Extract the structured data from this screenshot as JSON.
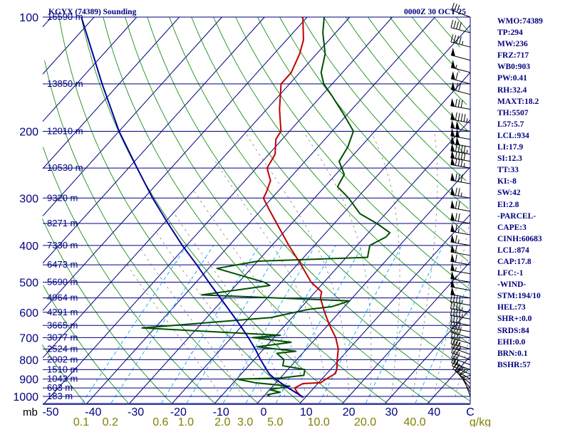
{
  "header": {
    "station": "KGYX (74389) Sounding",
    "time": "0000Z 30 OCT 25"
  },
  "indices": [
    "WMO:74389",
    "TP:294",
    "MW:236",
    "FRZ:717",
    "WB0:903",
    "PW:0.41",
    "RH:32.4",
    "MAXT:18.2",
    "TH:5507",
    "L57:5.7",
    "LCL:934",
    "LI:17.9",
    "SI:12.3",
    "TT:33",
    "KI:-8",
    "SW:42",
    "EI:2.8",
    "-PARCEL-",
    "CAPE:3",
    "CINH:60683",
    "LCL:874",
    "CAP:17.8",
    "LFC:-1",
    "-WIND-",
    "STM:194/10",
    "HEL:73",
    "SHR+:0.0",
    "SRDS:84",
    "EHI:0.0",
    "BRN:0.1",
    "BSHR:57"
  ],
  "colors": {
    "isobar": "#000080",
    "isotherm": "#000080",
    "dry_adiabat": "#008000",
    "moist_adiabat": "#808080",
    "mixing_ratio": "#00aaff",
    "temperature": "#c00000",
    "dewpoint": "#005000",
    "parcel": "#0000a0",
    "mixing_ratio_label": "#808000"
  },
  "chart_data": {
    "type": "line",
    "title": "KGYX (74389) Sounding",
    "subtitle": "0000Z 30 OCT 25",
    "xlabel": "",
    "ylabel": "mb",
    "y_scale": "log",
    "ylim": [
      1050,
      100
    ],
    "xlim": [
      -50,
      50
    ],
    "pressure_ticks": [
      "100",
      "200",
      "300",
      "400",
      "500",
      "600",
      "700",
      "800",
      "900",
      "1000"
    ],
    "pressure_tick_values": [
      100,
      200,
      300,
      400,
      500,
      600,
      700,
      800,
      900,
      1000
    ],
    "temperature_ticks": [
      "-50",
      "-40",
      "-30",
      "-20",
      "-10",
      "0",
      "10",
      "20",
      "30",
      "40",
      "C"
    ],
    "temperature_tick_values": [
      -50,
      -40,
      -30,
      -20,
      -10,
      0,
      10,
      20,
      30,
      40
    ],
    "mixing_ratio_labels": [
      "0.1",
      "0.2",
      "0.6",
      "1.0",
      "2.0",
      "3.0",
      "5.0",
      "10.0",
      "20.0",
      "40.0",
      "g/kg"
    ],
    "mixing_ratio_values": [
      0.1,
      0.2,
      0.6,
      1.0,
      2.0,
      3.0,
      5.0,
      10.0,
      20.0,
      40.0
    ],
    "height_labels": [
      {
        "p": 100,
        "label": "16590 m"
      },
      {
        "p": 150,
        "label": "13850 m"
      },
      {
        "p": 200,
        "label": "12010 m"
      },
      {
        "p": 250,
        "label": "10530 m"
      },
      {
        "p": 300,
        "label": "9320 m"
      },
      {
        "p": 350,
        "label": "8271 m"
      },
      {
        "p": 400,
        "label": "7330 m"
      },
      {
        "p": 450,
        "label": "6473 m"
      },
      {
        "p": 500,
        "label": "5690 m"
      },
      {
        "p": 550,
        "label": "4964 m"
      },
      {
        "p": 600,
        "label": "4291 m"
      },
      {
        "p": 650,
        "label": "3665 m"
      },
      {
        "p": 700,
        "label": "3077 m"
      },
      {
        "p": 750,
        "label": "2524 m"
      },
      {
        "p": 800,
        "label": "2002 m"
      },
      {
        "p": 850,
        "label": "1510 m"
      },
      {
        "p": 900,
        "label": "1043 m"
      },
      {
        "p": 950,
        "label": "603 m"
      },
      {
        "p": 1000,
        "label": "183 m"
      }
    ],
    "series": [
      {
        "key": "temperature",
        "points": [
          {
            "p": 1006,
            "t": 9.5
          },
          {
            "p": 1000,
            "t": 8.8
          },
          {
            "p": 975,
            "t": 7.0
          },
          {
            "p": 950,
            "t": 5.5
          },
          {
            "p": 925,
            "t": 6.5
          },
          {
            "p": 920,
            "t": 10.5
          },
          {
            "p": 900,
            "t": 11.0
          },
          {
            "p": 870,
            "t": 12.0
          },
          {
            "p": 850,
            "t": 11.5
          },
          {
            "p": 800,
            "t": 9.5
          },
          {
            "p": 750,
            "t": 7.5
          },
          {
            "p": 700,
            "t": 4.5
          },
          {
            "p": 650,
            "t": 0.5
          },
          {
            "p": 600,
            "t": -3.5
          },
          {
            "p": 550,
            "t": -7.5
          },
          {
            "p": 530,
            "t": -8.5
          },
          {
            "p": 500,
            "t": -13.0
          },
          {
            "p": 450,
            "t": -19.0
          },
          {
            "p": 400,
            "t": -26.0
          },
          {
            "p": 350,
            "t": -33.5
          },
          {
            "p": 320,
            "t": -38.5
          },
          {
            "p": 300,
            "t": -42.0
          },
          {
            "p": 290,
            "t": -42.5
          },
          {
            "p": 270,
            "t": -44.0
          },
          {
            "p": 250,
            "t": -47.5
          },
          {
            "p": 230,
            "t": -48.5
          },
          {
            "p": 210,
            "t": -51.5
          },
          {
            "p": 200,
            "t": -52.0
          },
          {
            "p": 175,
            "t": -57.0
          },
          {
            "p": 150,
            "t": -62.0
          },
          {
            "p": 140,
            "t": -62.0
          },
          {
            "p": 125,
            "t": -64.0
          },
          {
            "p": 115,
            "t": -66.0
          },
          {
            "p": 100,
            "t": -71.0
          }
        ]
      },
      {
        "key": "dewpoint",
        "points": [
          {
            "p": 1000,
            "t": 1.5
          },
          {
            "p": 990,
            "t": 0.5
          },
          {
            "p": 975,
            "t": 3.0
          },
          {
            "p": 960,
            "t": 0.0
          },
          {
            "p": 940,
            "t": 4.0
          },
          {
            "p": 920,
            "t": -5.0
          },
          {
            "p": 900,
            "t": -10.0
          },
          {
            "p": 895,
            "t": 0.0
          },
          {
            "p": 880,
            "t": 5.0
          },
          {
            "p": 850,
            "t": 4.0
          },
          {
            "p": 830,
            "t": -2.0
          },
          {
            "p": 800,
            "t": -3.0
          },
          {
            "p": 770,
            "t": -6.0
          },
          {
            "p": 760,
            "t": -2.0
          },
          {
            "p": 740,
            "t": -12.0
          },
          {
            "p": 720,
            "t": -5.0
          },
          {
            "p": 700,
            "t": -15.0
          },
          {
            "p": 690,
            "t": -9.0
          },
          {
            "p": 660,
            "t": -43.0
          },
          {
            "p": 620,
            "t": -15.0
          },
          {
            "p": 590,
            "t": -8.0
          },
          {
            "p": 580,
            "t": -3.0
          },
          {
            "p": 560,
            "t": 0.0
          },
          {
            "p": 540,
            "t": -36.0
          },
          {
            "p": 510,
            "t": -22.0
          },
          {
            "p": 500,
            "t": -24.0
          },
          {
            "p": 460,
            "t": -38.0
          },
          {
            "p": 440,
            "t": -30.0
          },
          {
            "p": 430,
            "t": -5.0
          },
          {
            "p": 400,
            "t": -7.0
          },
          {
            "p": 380,
            "t": -5.0
          },
          {
            "p": 370,
            "t": -5.0
          },
          {
            "p": 350,
            "t": -10.0
          },
          {
            "p": 330,
            "t": -16.0
          },
          {
            "p": 300,
            "t": -22.0
          },
          {
            "p": 280,
            "t": -27.0
          },
          {
            "p": 260,
            "t": -28.0
          },
          {
            "p": 240,
            "t": -32.0
          },
          {
            "p": 220,
            "t": -33.0
          },
          {
            "p": 200,
            "t": -35.0
          },
          {
            "p": 180,
            "t": -41.0
          },
          {
            "p": 160,
            "t": -48.0
          },
          {
            "p": 150,
            "t": -52.0
          },
          {
            "p": 140,
            "t": -55.0
          },
          {
            "p": 125,
            "t": -58.0
          },
          {
            "p": 110,
            "t": -63.0
          },
          {
            "p": 100,
            "t": -66.0
          }
        ]
      },
      {
        "key": "parcel",
        "points": [
          {
            "p": 1006,
            "t": 9.5
          },
          {
            "p": 1000,
            "t": 9.0
          },
          {
            "p": 950,
            "t": 4.0
          },
          {
            "p": 900,
            "t": -1.0
          },
          {
            "p": 874,
            "t": -3.3
          },
          {
            "p": 850,
            "t": -5.0
          },
          {
            "p": 800,
            "t": -8.5
          },
          {
            "p": 750,
            "t": -12.0
          },
          {
            "p": 700,
            "t": -16.0
          },
          {
            "p": 650,
            "t": -20.5
          },
          {
            "p": 600,
            "t": -25.5
          },
          {
            "p": 550,
            "t": -31.0
          },
          {
            "p": 500,
            "t": -37.0
          },
          {
            "p": 450,
            "t": -43.5
          },
          {
            "p": 400,
            "t": -51.0
          },
          {
            "p": 350,
            "t": -59.0
          },
          {
            "p": 300,
            "t": -68.0
          },
          {
            "p": 250,
            "t": -78.0
          },
          {
            "p": 200,
            "t": -90.0
          },
          {
            "p": 150,
            "t": -104.0
          },
          {
            "p": 100,
            "t": -123.0
          }
        ]
      }
    ],
    "wind_profile": [
      {
        "p": 1000,
        "dir": 340,
        "spd": 10
      },
      {
        "p": 975,
        "dir": 330,
        "spd": 15
      },
      {
        "p": 950,
        "dir": 320,
        "spd": 20
      },
      {
        "p": 925,
        "dir": 310,
        "spd": 20
      },
      {
        "p": 900,
        "dir": 300,
        "spd": 25
      },
      {
        "p": 875,
        "dir": 295,
        "spd": 25
      },
      {
        "p": 850,
        "dir": 290,
        "spd": 25
      },
      {
        "p": 825,
        "dir": 290,
        "spd": 30
      },
      {
        "p": 800,
        "dir": 290,
        "spd": 30
      },
      {
        "p": 775,
        "dir": 290,
        "spd": 35
      },
      {
        "p": 750,
        "dir": 285,
        "spd": 35
      },
      {
        "p": 725,
        "dir": 285,
        "spd": 35
      },
      {
        "p": 700,
        "dir": 285,
        "spd": 40
      },
      {
        "p": 675,
        "dir": 280,
        "spd": 40
      },
      {
        "p": 650,
        "dir": 280,
        "spd": 40
      },
      {
        "p": 625,
        "dir": 280,
        "spd": 45
      },
      {
        "p": 600,
        "dir": 280,
        "spd": 45
      },
      {
        "p": 575,
        "dir": 280,
        "spd": 45
      },
      {
        "p": 550,
        "dir": 280,
        "spd": 50
      },
      {
        "p": 525,
        "dir": 280,
        "spd": 50
      },
      {
        "p": 500,
        "dir": 280,
        "spd": 55
      },
      {
        "p": 475,
        "dir": 280,
        "spd": 55
      },
      {
        "p": 450,
        "dir": 280,
        "spd": 60
      },
      {
        "p": 425,
        "dir": 280,
        "spd": 60
      },
      {
        "p": 400,
        "dir": 280,
        "spd": 65
      },
      {
        "p": 375,
        "dir": 280,
        "spd": 65
      },
      {
        "p": 350,
        "dir": 280,
        "spd": 70
      },
      {
        "p": 325,
        "dir": 280,
        "spd": 70
      },
      {
        "p": 300,
        "dir": 280,
        "spd": 75
      },
      {
        "p": 275,
        "dir": 280,
        "spd": 80
      },
      {
        "p": 250,
        "dir": 280,
        "spd": 85
      },
      {
        "p": 240,
        "dir": 280,
        "spd": 90
      },
      {
        "p": 230,
        "dir": 280,
        "spd": 95
      },
      {
        "p": 220,
        "dir": 280,
        "spd": 100
      },
      {
        "p": 210,
        "dir": 280,
        "spd": 100
      },
      {
        "p": 200,
        "dir": 280,
        "spd": 100
      },
      {
        "p": 190,
        "dir": 280,
        "spd": 95
      },
      {
        "p": 175,
        "dir": 280,
        "spd": 80
      },
      {
        "p": 160,
        "dir": 285,
        "spd": 70
      },
      {
        "p": 150,
        "dir": 285,
        "spd": 60
      },
      {
        "p": 140,
        "dir": 285,
        "spd": 55
      },
      {
        "p": 130,
        "dir": 285,
        "spd": 50
      },
      {
        "p": 120,
        "dir": 285,
        "spd": 45
      },
      {
        "p": 110,
        "dir": 285,
        "spd": 40
      },
      {
        "p": 100,
        "dir": 290,
        "spd": 35
      }
    ]
  }
}
